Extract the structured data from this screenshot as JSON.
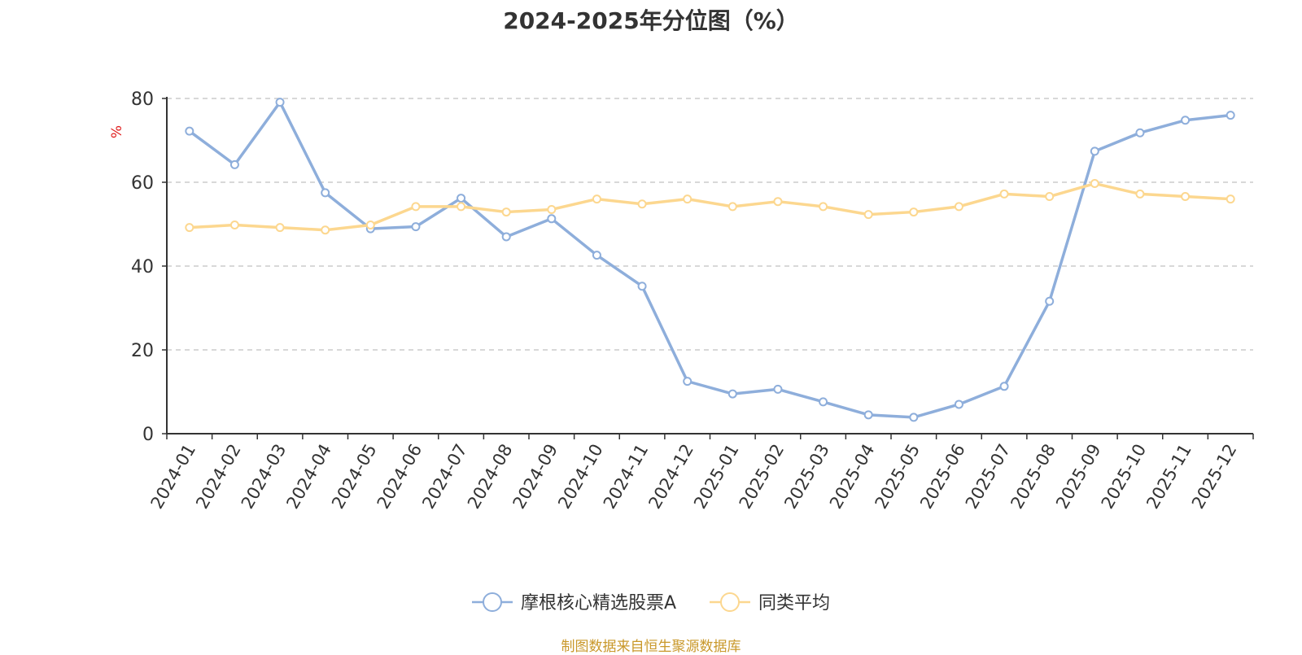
{
  "chart_data": {
    "type": "line",
    "title": "2024-2025年分位图（%）",
    "ylabel": "%",
    "xlabel": "",
    "ylim": [
      0,
      80
    ],
    "yticks": [
      0,
      20,
      40,
      60,
      80
    ],
    "grid": true,
    "legend_position": "bottom",
    "categories": [
      "2024-01",
      "2024-02",
      "2024-03",
      "2024-04",
      "2024-05",
      "2024-06",
      "2024-07",
      "2024-08",
      "2024-09",
      "2024-10",
      "2024-11",
      "2024-12",
      "2025-01",
      "2025-02",
      "2025-03",
      "2025-04",
      "2025-05",
      "2025-06",
      "2025-07",
      "2025-08",
      "2025-09",
      "2025-10",
      "2025-11",
      "2025-12"
    ],
    "series": [
      {
        "name": "摩根核心精选股票A",
        "color": "#8eaedb",
        "values": [
          72.2,
          64.2,
          79.1,
          57.5,
          48.9,
          49.4,
          56.2,
          47.0,
          51.3,
          42.6,
          35.2,
          12.5,
          9.5,
          10.6,
          7.6,
          4.5,
          3.9,
          7.0,
          11.3,
          31.6,
          67.4,
          71.8,
          74.8,
          76.0
        ]
      },
      {
        "name": "同类平均",
        "color": "#fcd78f",
        "values": [
          49.2,
          49.8,
          49.2,
          48.6,
          49.8,
          54.2,
          54.2,
          52.9,
          53.5,
          56.0,
          54.8,
          56.0,
          54.2,
          55.4,
          54.2,
          52.3,
          52.9,
          54.2,
          57.2,
          56.6,
          59.7,
          57.2,
          56.6,
          56.0
        ]
      }
    ]
  },
  "source_note": "制图数据来自恒生聚源数据库"
}
